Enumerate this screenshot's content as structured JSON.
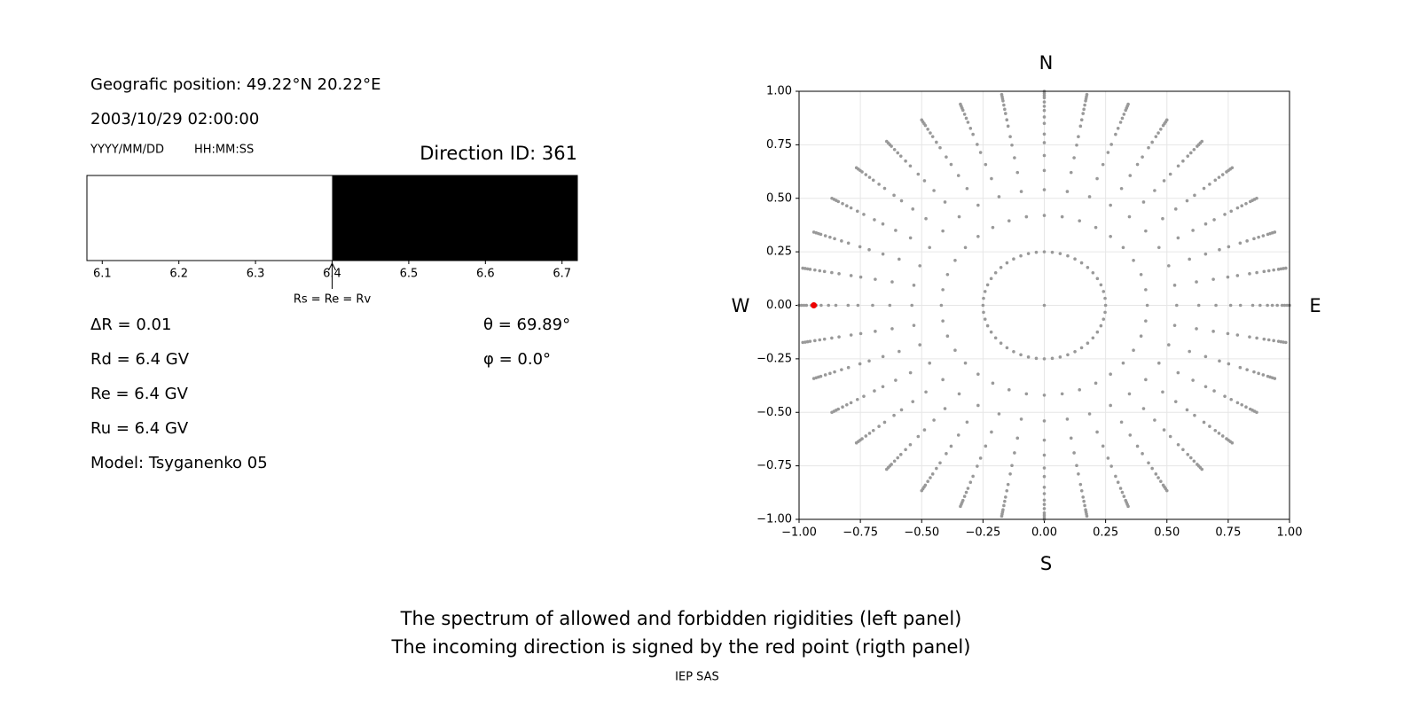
{
  "header": {
    "position": "Geografic position: 49.22°N 20.22°E",
    "datetime": "2003/10/29 02:00:00",
    "date_format": "YYYY/MM/DD",
    "time_format": "HH:MM:SS",
    "direction": "Direction ID: 361"
  },
  "params": {
    "delta_r": "ΔR = 0.01",
    "rd": "Rd = 6.4 GV",
    "re": "Re = 6.4 GV",
    "ru": "Ru = 6.4 GV",
    "model": "Model: Tsyganenko 05",
    "theta": "θ = 69.89°",
    "phi": "φ = 0.0°"
  },
  "caption": [
    "The spectrum of allowed and forbidden rigidities (left panel)",
    "The incoming direction is signed by the red point (rigth panel)"
  ],
  "footer": "IEP SAS",
  "chart_data": [
    {
      "type": "spectrum",
      "xlim": [
        6.08,
        6.72
      ],
      "xticks": [
        6.1,
        6.2,
        6.3,
        6.4,
        6.5,
        6.6,
        6.7
      ],
      "segments": [
        {
          "from": 6.08,
          "to": 6.4,
          "color": "#ffffff"
        },
        {
          "from": 6.4,
          "to": 6.72,
          "color": "#000000"
        }
      ],
      "annotation": {
        "text": "Rs = Re = Rv",
        "x": 6.4
      }
    },
    {
      "type": "scatter",
      "xlim": [
        -1,
        1
      ],
      "ylim": [
        -1,
        1
      ],
      "grid": true,
      "color": "#999999",
      "xticks": [
        {
          "value": -1,
          "label": "−1.00"
        },
        {
          "value": -0.75,
          "label": "−0.75"
        },
        {
          "value": -0.5,
          "label": "−0.50"
        },
        {
          "value": -0.25,
          "label": "−0.25"
        },
        {
          "value": 0,
          "label": "0.00"
        },
        {
          "value": 0.25,
          "label": "0.25"
        },
        {
          "value": 0.5,
          "label": "0.50"
        },
        {
          "value": 0.75,
          "label": "0.75"
        },
        {
          "value": 1,
          "label": "1.00"
        }
      ],
      "yticks": [
        {
          "value": -1,
          "label": "−1.00"
        },
        {
          "value": -0.75,
          "label": "−0.75"
        },
        {
          "value": -0.5,
          "label": "−0.50"
        },
        {
          "value": -0.25,
          "label": "−0.25"
        },
        {
          "value": 0,
          "label": "0.00"
        },
        {
          "value": 0.25,
          "label": "0.25"
        },
        {
          "value": 0.5,
          "label": "0.50"
        },
        {
          "value": 0.75,
          "label": "0.75"
        },
        {
          "value": 1,
          "label": "1.00"
        }
      ],
      "compass": {
        "N": "N",
        "S": "S",
        "W": "W",
        "E": "E"
      },
      "spoke_angles": [
        0,
        10,
        20,
        30,
        40,
        50,
        60,
        70,
        80,
        90,
        100,
        110,
        120,
        130,
        140,
        150,
        160,
        170,
        180,
        190,
        200,
        210,
        220,
        230,
        240,
        250,
        260,
        270,
        280,
        290,
        300,
        310,
        320,
        330,
        340,
        350
      ],
      "spoke_radii": [
        0.42,
        0.54,
        0.63,
        0.7,
        0.76,
        0.8,
        0.85,
        0.88,
        0.91,
        0.93,
        0.95,
        0.97,
        0.98,
        0.99,
        1.0
      ],
      "ring_radius": 0.25,
      "ring_angles": [
        0,
        7.5,
        15,
        22.5,
        30,
        37.5,
        45,
        52.5,
        60,
        67.5,
        75,
        82.5,
        90,
        97.5,
        105,
        112.5,
        120,
        127.5,
        135,
        142.5,
        150,
        157.5,
        165,
        172.5,
        180,
        187.5,
        195,
        202.5,
        210,
        217.5,
        225,
        232.5,
        240,
        247.5,
        255,
        262.5,
        270,
        277.5,
        285,
        292.5,
        300,
        307.5,
        315,
        322.5,
        330,
        337.5,
        345,
        352.5
      ],
      "center": {
        "x": 0,
        "y": 0
      },
      "highlight": {
        "x": -0.94,
        "y": 0,
        "color": "#ee0000"
      }
    }
  ]
}
